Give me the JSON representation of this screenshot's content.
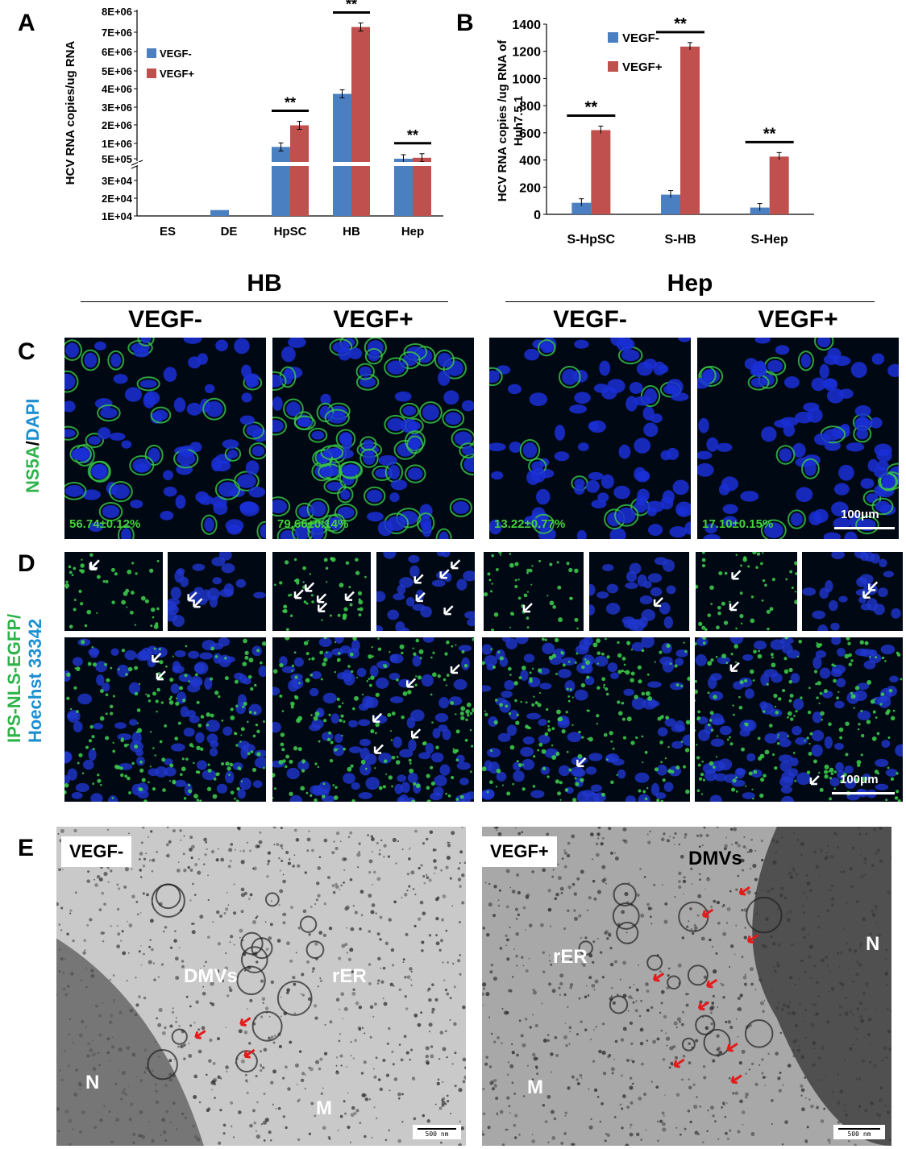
{
  "panels": {
    "A": "A",
    "B": "B",
    "C": "C",
    "D": "D",
    "E": "E"
  },
  "chart_data": [
    {
      "type": "bar",
      "ylabel": "HCV RNA copies/ug RNA",
      "categories": [
        "ES",
        "DE",
        "HpSC",
        "HB",
        "Hep"
      ],
      "yticks": [
        "1E+04",
        "2E+04",
        "3E+04",
        "5E+05",
        "1E+06",
        "2E+06",
        "3E+06",
        "4E+06",
        "5E+06",
        "6E+06",
        "7E+06",
        "8E+06"
      ],
      "axis_break": true,
      "series": [
        {
          "name": "VEGF-",
          "color": "#4a7fc1",
          "values": [
            0,
            12000,
            1100000,
            3800000,
            500000
          ]
        },
        {
          "name": "VEGF+",
          "color": "#c0504d",
          "values": [
            0,
            0,
            2200000,
            7200000,
            550000
          ]
        }
      ],
      "significance": [
        {
          "category": "HpSC",
          "label": "**"
        },
        {
          "category": "HB",
          "label": "**"
        },
        {
          "category": "Hep",
          "label": "**"
        }
      ],
      "legend": "top-left"
    },
    {
      "type": "bar",
      "ylabel": "HCV RNA copies /ug RNA of Huh7.5.1",
      "ylim": [
        0,
        1400
      ],
      "yticks": [
        0,
        200,
        400,
        600,
        800,
        1000,
        1200,
        1400
      ],
      "categories": [
        "S-HpSC",
        "S-HB",
        "S-Hep"
      ],
      "series": [
        {
          "name": "VEGF-",
          "color": "#4a7fc1",
          "values": [
            85,
            145,
            50
          ]
        },
        {
          "name": "VEGF+",
          "color": "#c0504d",
          "values": [
            620,
            1235,
            425
          ]
        }
      ],
      "significance": [
        {
          "category": "S-HpSC",
          "label": "**"
        },
        {
          "category": "S-HB",
          "label": "**"
        },
        {
          "category": "S-Hep",
          "label": "**"
        }
      ],
      "legend": "top-left"
    }
  ],
  "micro": {
    "groups": [
      "HB",
      "Hep"
    ],
    "columns": [
      "VEGF-",
      "VEGF+",
      "VEGF-",
      "VEGF+"
    ],
    "c_label_green": "NS5A",
    "c_label_sep": "/",
    "c_label_blue": "DAPI",
    "c_percents": [
      "56.74±0.12%",
      "79.66±0.14%",
      "13.22±0.77%",
      "17.10±0.15%"
    ],
    "d_label_green": "IPS-NLS-EGFP/",
    "d_label_blue": "Hoechst 33342",
    "scale": "100μm"
  },
  "em": {
    "left_label": "VEGF-",
    "right_label": "VEGF+",
    "left_marks": {
      "dmv": "DMVs",
      "rer": "rER",
      "n": "N",
      "m": "M"
    },
    "right_marks": {
      "dmv": "DMVs",
      "rer": "rER",
      "n": "N",
      "m": "M"
    },
    "scale": "500 nm"
  }
}
